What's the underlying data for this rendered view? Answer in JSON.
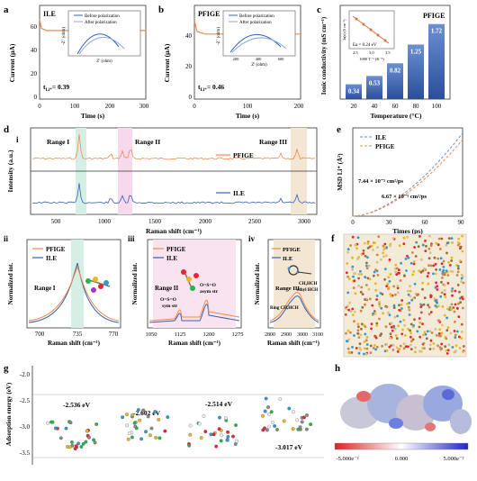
{
  "panels": {
    "a": {
      "letter": "a",
      "label": "ILE",
      "tli": "t",
      "tli_sub": "Li⁺",
      "tli_value": "= 0.39",
      "ylabel": "Current (μA)",
      "xlabel": "Time (s)",
      "xticks": [
        "0",
        "100",
        "200",
        "300"
      ],
      "yticks": [
        "0",
        "20",
        "40",
        "60"
      ],
      "inset": {
        "ylabel": "-Z'' (ohm)",
        "xlabel": "Z' (ohm)",
        "legend": [
          "Before polarization",
          "After polarization"
        ]
      }
    },
    "b": {
      "letter": "b",
      "label": "PFIGE",
      "tli": "t",
      "tli_sub": "Li⁺",
      "tli_value": "= 0.46",
      "ylabel": "Current (μA)",
      "xlabel": "Time (s)",
      "xticks": [
        "0",
        "100",
        "200"
      ],
      "yticks": [
        "0",
        "20",
        "40"
      ],
      "inset": {
        "ylabel": "-Z'' (ohm)",
        "xlabel": "Z' (ohm)",
        "legend": [
          "Before polarization",
          "After polarization"
        ],
        "xticks": [
          "200",
          "400",
          "600"
        ]
      }
    },
    "c": {
      "letter": "c",
      "label": "PFIGE",
      "ylabel": "Ionic conductivity (mS cm⁻¹)",
      "xlabel": "Temperature (°C)",
      "inset": {
        "ea": "Ea = 0.24 eV",
        "xlabel": "1000 T⁻¹ (K⁻¹)",
        "ylabel": "ln(σ) (S cm⁻¹)",
        "xticks": [
          "2.5",
          "3.0",
          "3.5"
        ]
      }
    },
    "d": {
      "letter": "d",
      "sub": "i",
      "ylabel": "Intensity (a.u.)",
      "xlabel": "Raman shift (cm⁻¹)",
      "ranges": [
        "Range I",
        "Range II",
        "Range III"
      ],
      "legend": [
        "PFIGE",
        "ILE"
      ],
      "xticks": [
        "500",
        "1000",
        "1500",
        "2000",
        "2500",
        "3000"
      ]
    },
    "e": {
      "letter": "e",
      "ylabel": "MSD Li⁺ (Å²)",
      "xlabel": "Times (ps)",
      "legend": [
        "ILE",
        "PFIGE"
      ],
      "ann1": "7.44 × 10⁻⁵ cm²/ps",
      "ann2": "6.67 × 10⁻⁵ cm²/ps",
      "xticks": [
        "0",
        "30",
        "60",
        "90"
      ]
    },
    "ii": {
      "sub": "ii",
      "range": "Range I",
      "legend": [
        "PFIGE",
        "ILE"
      ],
      "ylabel": "Normalized int.",
      "xlabel": "Raman shift (cm⁻¹)",
      "xticks": [
        "700",
        "735",
        "770"
      ]
    },
    "iii": {
      "sub": "iii",
      "range": "Range II",
      "legend": [
        "PFIGE",
        "ILE"
      ],
      "ylabel": "Normalized int.",
      "xlabel": "Raman shift (cm⁻¹)",
      "xticks": [
        "1050",
        "1125",
        "1200",
        "1275"
      ],
      "ann1": [
        "O=S=O",
        "sym str"
      ],
      "ann2": [
        "O=S=O",
        "asym str"
      ]
    },
    "iv": {
      "sub": "iv",
      "range": "Range III",
      "legend": [
        "PFIGE",
        "ILE"
      ],
      "ylabel": "Normalized int.",
      "xlabel": "Raman shift (cm⁻¹)",
      "xticks": [
        "2800",
        "2900",
        "3000",
        "3100"
      ],
      "ann1": "Ring CH,HCH",
      "ann2": [
        "CH₃HCH",
        "ethyl HCH"
      ]
    },
    "f": {
      "letter": "f"
    },
    "g": {
      "letter": "g",
      "ylabel": "Adsorption energy (eV)",
      "yticks": [
        "-2.0",
        "-2.5",
        "-3.0",
        "-3.5"
      ],
      "energies": [
        "-2.536 eV",
        "-2.602 eV",
        "-2.514 eV",
        "-3.017 eV"
      ]
    },
    "h": {
      "letter": "h",
      "scale": [
        "-5.000e⁻²",
        "0.000",
        "5.000e⁻²"
      ]
    }
  },
  "chart_data": [
    {
      "type": "line",
      "panel": "a",
      "series": [
        {
          "name": "",
          "x": [
            0,
            5,
            20,
            100,
            200,
            300
          ],
          "y": [
            70,
            62,
            60,
            60,
            60,
            60
          ]
        }
      ],
      "xlabel": "Time (s)",
      "ylabel": "Current (μA)",
      "xlim": [
        0,
        300
      ]
    },
    {
      "type": "line",
      "panel": "b",
      "series": [
        {
          "name": "",
          "x": [
            0,
            5,
            20,
            100,
            200
          ],
          "y": [
            60,
            52,
            50,
            50,
            50
          ]
        }
      ],
      "xlabel": "Time (s)",
      "ylabel": "Current (μA)",
      "xlim": [
        0,
        200
      ]
    },
    {
      "type": "bar",
      "panel": "c",
      "categories": [
        "20",
        "40",
        "60",
        "80",
        "100"
      ],
      "values": [
        0.34,
        0.53,
        0.82,
        1.25,
        1.72
      ],
      "xlabel": "Temperature (°C)",
      "ylabel": "Ionic conductivity (mS cm⁻¹)"
    },
    {
      "type": "line",
      "panel": "e",
      "series": [
        {
          "name": "ILE",
          "x": [
            0,
            30,
            60,
            90
          ],
          "y": [
            0,
            100,
            250,
            500
          ]
        },
        {
          "name": "PFIGE",
          "x": [
            0,
            30,
            60,
            90
          ],
          "y": [
            0,
            90,
            220,
            460
          ]
        }
      ],
      "xlabel": "Times (ps)",
      "ylabel": "MSD Li⁺ (Å²)",
      "xlim": [
        0,
        90
      ]
    },
    {
      "type": "bar",
      "panel": "g",
      "categories": [
        "1",
        "2",
        "3",
        "4"
      ],
      "values": [
        -2.536,
        -2.602,
        -2.514,
        -3.017
      ],
      "ylabel": "Adsorption energy (eV)"
    }
  ]
}
